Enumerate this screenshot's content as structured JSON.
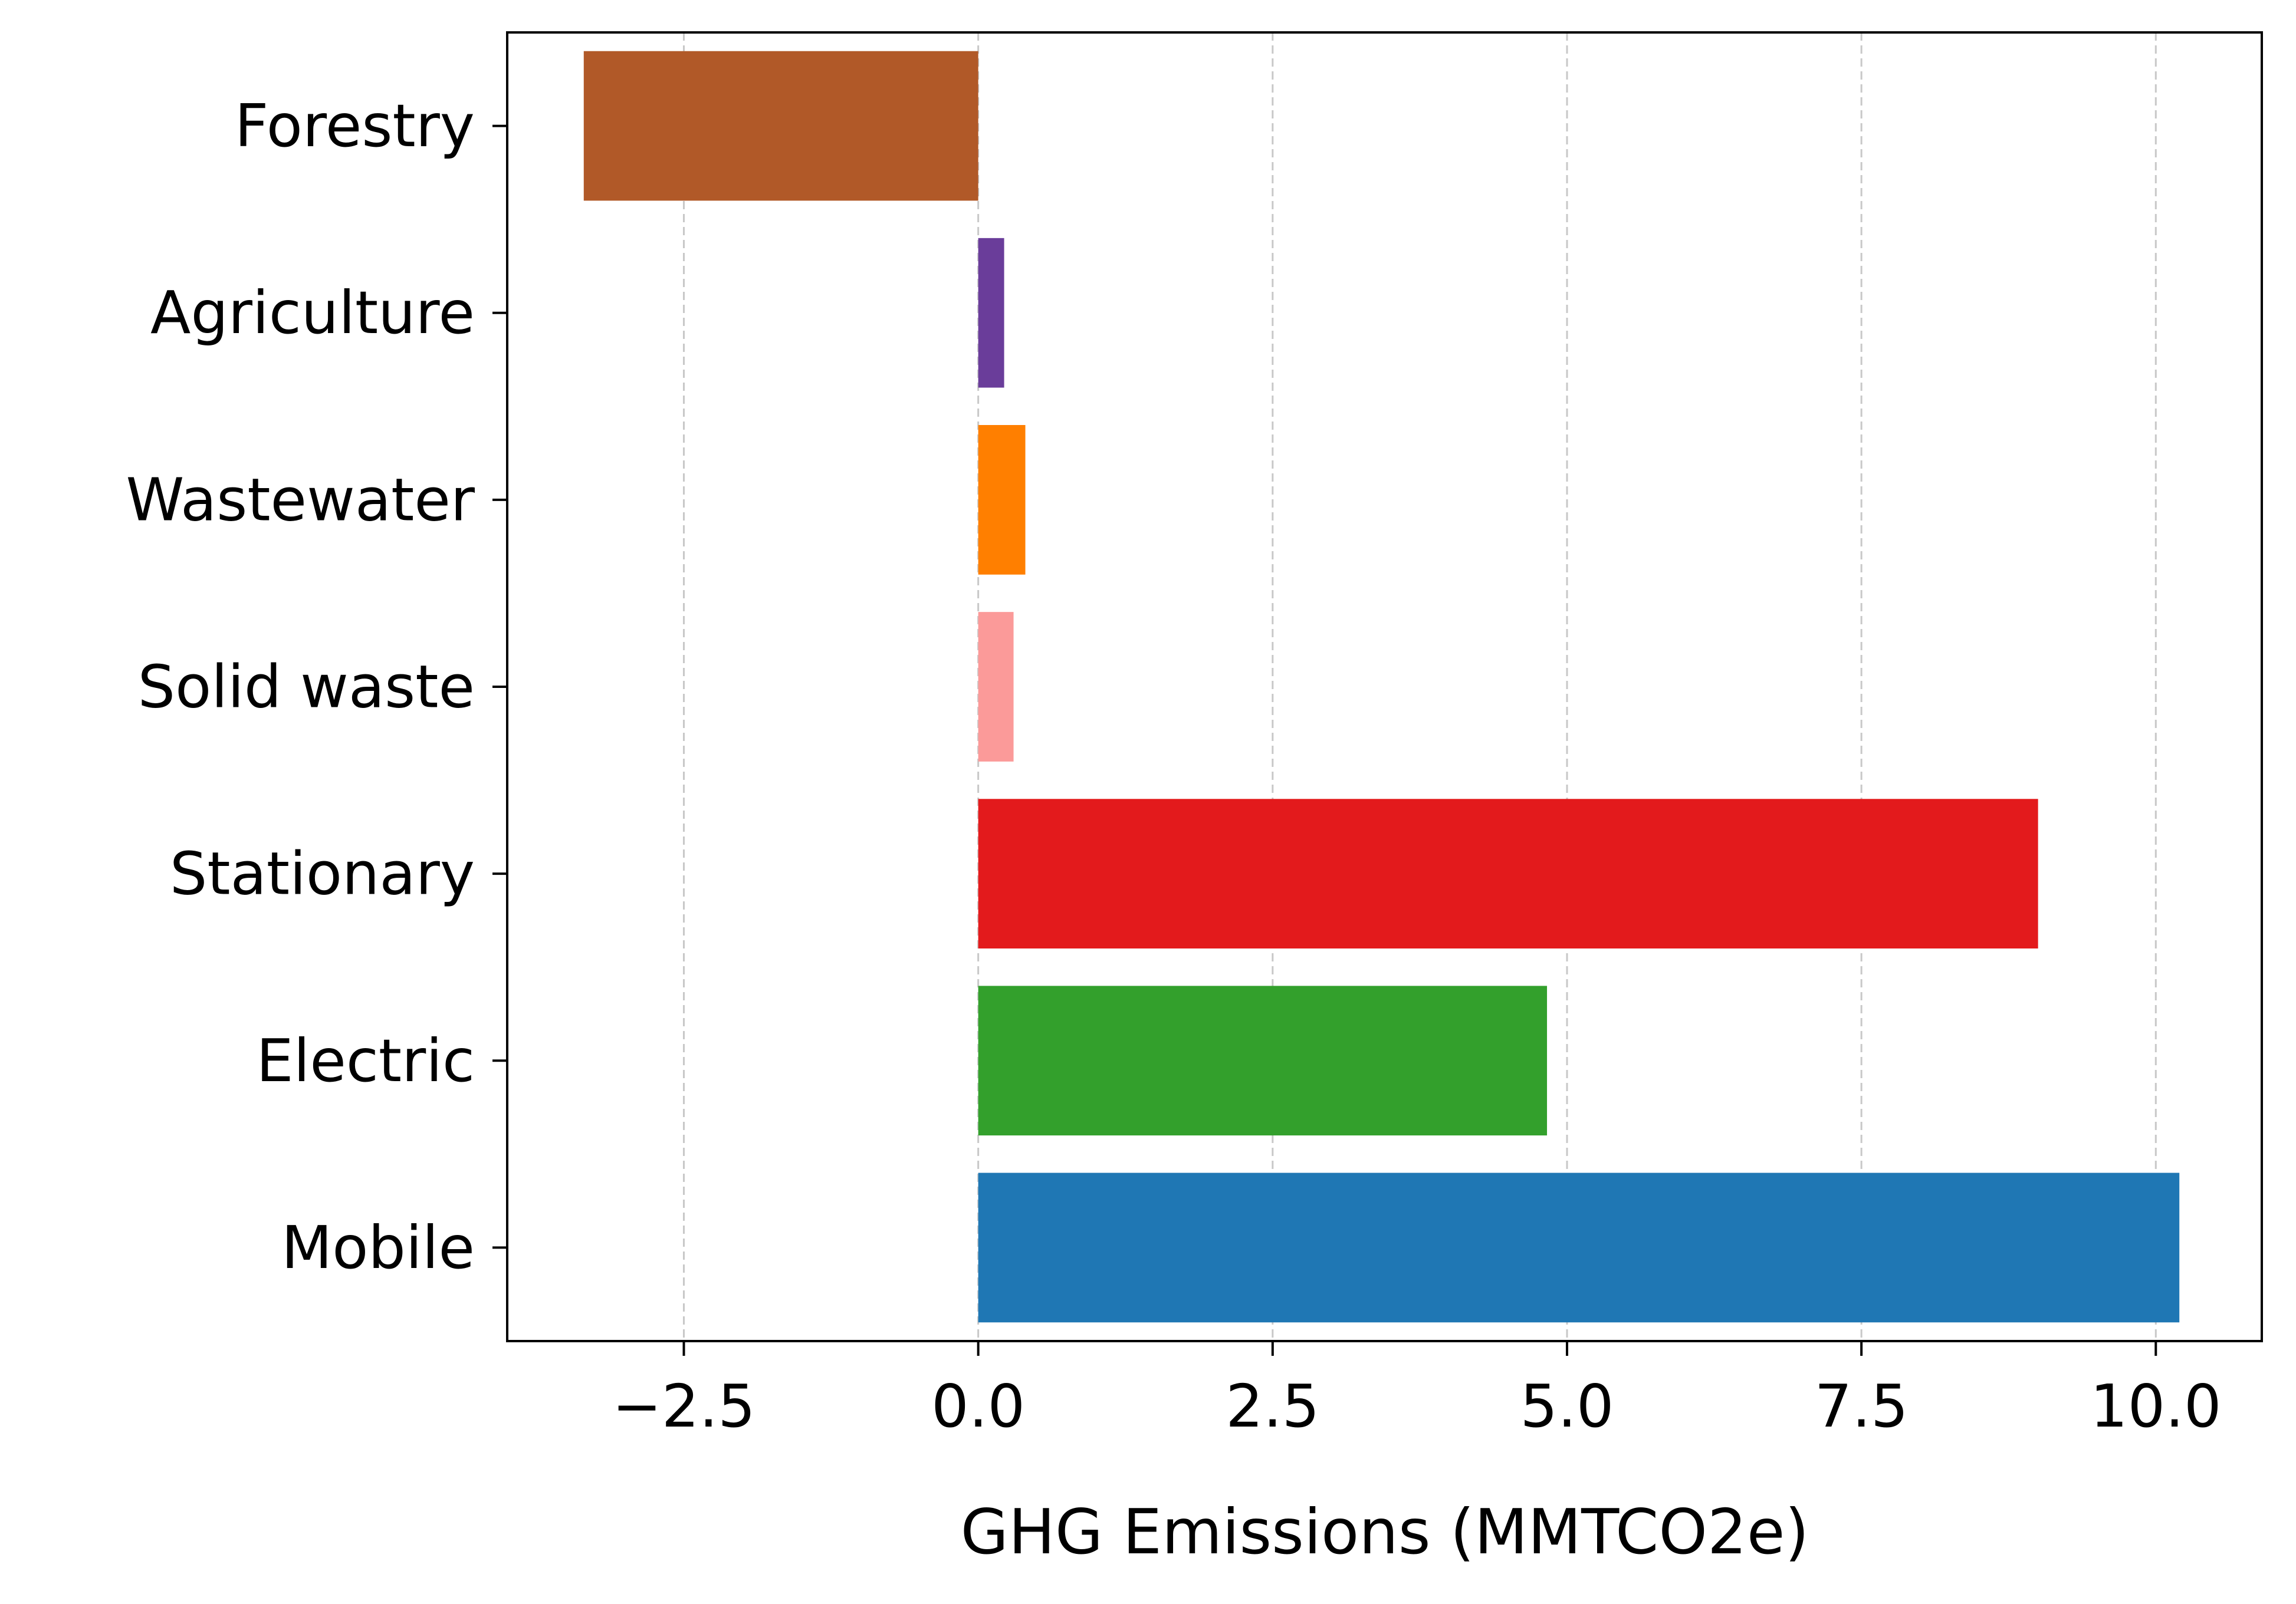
{
  "chart_data": {
    "type": "bar",
    "orientation": "horizontal",
    "categories": [
      "Mobile",
      "Electric",
      "Stationary",
      "Solid waste",
      "Wastewater",
      "Agriculture",
      "Forestry"
    ],
    "values": [
      10.2,
      4.83,
      9.0,
      0.3,
      0.4,
      0.22,
      -3.35
    ],
    "colors": [
      "#1f77b4",
      "#33a02c",
      "#e31a1c",
      "#fb9a99",
      "#ff7f00",
      "#6a3d9a",
      "#b15928"
    ],
    "title": "",
    "xlabel": "GHG Emissions (MMTCO2e)",
    "ylabel": "",
    "xlim": [
      -4.0,
      10.9
    ],
    "xticks": [
      -2.5,
      0.0,
      2.5,
      5.0,
      7.5,
      10.0
    ],
    "xtick_labels": [
      "−2.5",
      "0.0",
      "2.5",
      "5.0",
      "7.5",
      "10.0"
    ],
    "grid": {
      "x": true,
      "y": false,
      "style": "dashed",
      "color": "#c8c8c8"
    },
    "legend": "none"
  }
}
